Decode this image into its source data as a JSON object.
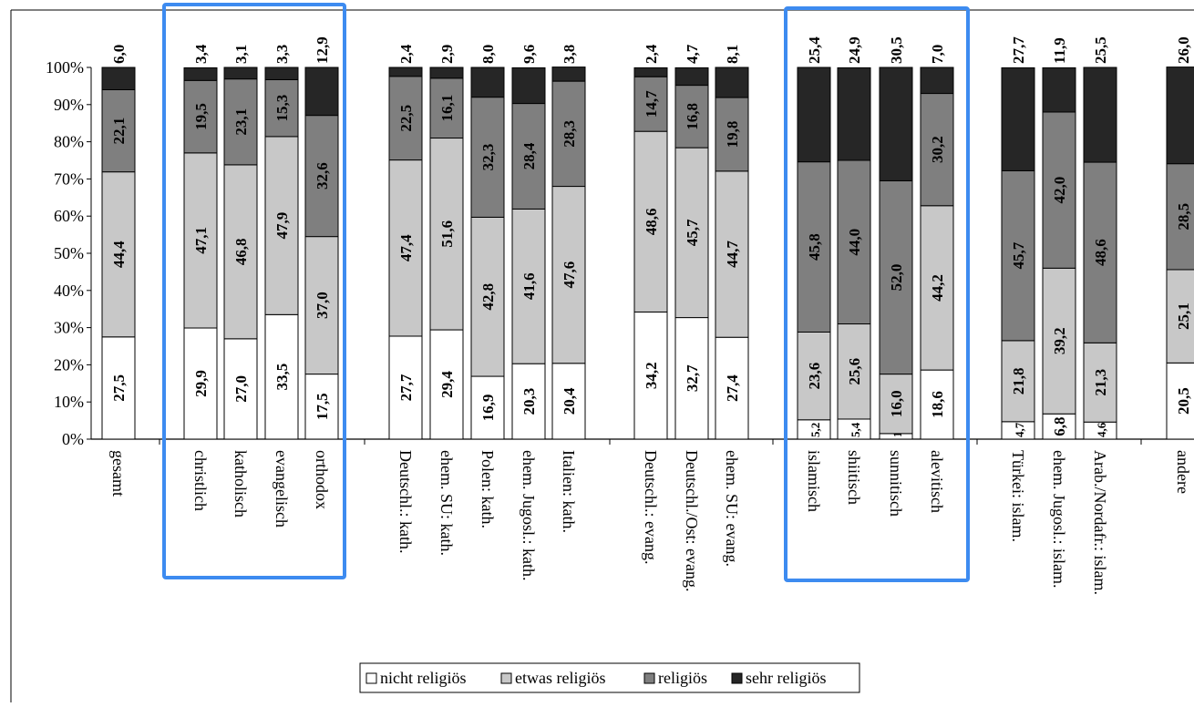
{
  "chart_data": {
    "type": "bar",
    "stacked": true,
    "percent_stacked": true,
    "ylim": [
      0,
      100
    ],
    "y_ticks": [
      "0%",
      "10%",
      "20%",
      "30%",
      "40%",
      "50%",
      "60%",
      "70%",
      "80%",
      "90%",
      "100%"
    ],
    "grid": false,
    "legend_placement": "bottom-center",
    "categories": [
      "gesamt",
      "christlich",
      "katholisch",
      "evangelisch",
      "orthodox",
      "Deutschl.: kath.",
      "ehem. SU: kath.",
      "Polen: kath.",
      "ehem. Jugosl.: kath.",
      "Italien: kath.",
      "Deutschl.: evang.",
      "Deutschl./Ost: evang.",
      "ehem. SU: evang.",
      "islamisch",
      "shiitisch",
      "sunnitisch",
      "alevitisch",
      "Türkei: islam.",
      "ehem. Jugosl.: islam.",
      "Arab./Nordafr.: islam.",
      "andere"
    ],
    "groups": [
      [
        0
      ],
      [
        1,
        2,
        3,
        4
      ],
      [
        5,
        6,
        7,
        8,
        9
      ],
      [
        10,
        11,
        12
      ],
      [
        13,
        14,
        15,
        16
      ],
      [
        17,
        18,
        19
      ],
      [
        20
      ]
    ],
    "highlighted_groups": [
      1,
      4
    ],
    "highlight_color": "#3d8bf0",
    "series": [
      {
        "name": "nicht religiös",
        "color": "#ffffff",
        "values": [
          27.5,
          29.9,
          27.0,
          33.5,
          17.5,
          27.7,
          29.4,
          16.9,
          20.3,
          20.4,
          34.2,
          32.7,
          27.4,
          5.2,
          5.4,
          1.5,
          18.6,
          4.7,
          6.8,
          4.6,
          20.5
        ],
        "labels": [
          "27,5",
          "29,9",
          "27,0",
          "33,5",
          "17,5",
          "27,7",
          "29,4",
          "16,9",
          "20,3",
          "20,4",
          "34,2",
          "32,7",
          "27,4",
          "5,2",
          "5,4",
          "1,5",
          "18,6",
          "4,7",
          "6,8",
          "4,6",
          "20,5"
        ]
      },
      {
        "name": "etwas religiös",
        "color": "#c8c8c8",
        "values": [
          44.4,
          47.1,
          46.8,
          47.9,
          37.0,
          47.4,
          51.6,
          42.8,
          41.6,
          47.6,
          48.6,
          45.7,
          44.7,
          23.6,
          25.6,
          16.0,
          44.2,
          21.8,
          39.2,
          21.3,
          25.1
        ],
        "labels": [
          "44,4",
          "47,1",
          "46,8",
          "47,9",
          "37,0",
          "47,4",
          "51,6",
          "42,8",
          "41,6",
          "47,6",
          "48,6",
          "45,7",
          "44,7",
          "23,6",
          "25,6",
          "16,0",
          "44,2",
          "21,8",
          "39,2",
          "21,3",
          "25,1"
        ]
      },
      {
        "name": "religiös",
        "color": "#7f7f7f",
        "values": [
          22.1,
          19.5,
          23.1,
          15.3,
          32.6,
          22.5,
          16.1,
          32.3,
          28.4,
          28.3,
          14.7,
          16.8,
          19.8,
          45.8,
          44.0,
          52.0,
          30.2,
          45.7,
          42.0,
          48.6,
          28.5
        ],
        "labels": [
          "22,1",
          "19,5",
          "23,1",
          "15,3",
          "32,6",
          "22,5",
          "16,1",
          "32,3",
          "28,4",
          "28,3",
          "14,7",
          "16,8",
          "19,8",
          "45,8",
          "44,0",
          "52,0",
          "30,2",
          "45,7",
          "42,0",
          "48,6",
          "28,5"
        ]
      },
      {
        "name": "sehr religiös",
        "color": "#262626",
        "values": [
          6.0,
          3.4,
          3.1,
          3.3,
          12.9,
          2.4,
          2.9,
          8.0,
          9.6,
          3.8,
          2.4,
          4.7,
          8.1,
          25.4,
          24.9,
          30.5,
          7.0,
          27.7,
          11.9,
          25.5,
          26.0
        ],
        "labels": [
          "6,0",
          "3,4",
          "3,1",
          "3,3",
          "12,9",
          "2,4",
          "2,9",
          "8,0",
          "9,6",
          "3,8",
          "2,4",
          "4,7",
          "8,1",
          "25,4",
          "24,9",
          "30,5",
          "7,0",
          "27,7",
          "11,9",
          "25,5",
          "26,0"
        ]
      }
    ]
  }
}
